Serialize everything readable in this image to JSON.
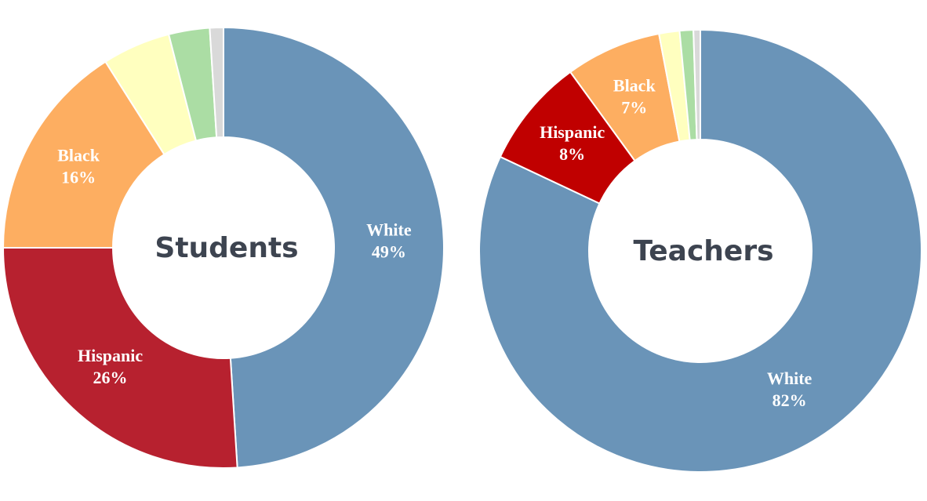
{
  "chart_data": [
    {
      "type": "donut",
      "title": "Students",
      "categories": [
        "White",
        "Hispanic",
        "Black",
        null,
        null,
        null
      ],
      "values": [
        49,
        26,
        16,
        5,
        3,
        1
      ],
      "value_labels": [
        "49%",
        "26%",
        "16%",
        null,
        null,
        null
      ],
      "colors": [
        "#6a94b8",
        "#b7212f",
        "#fdae61",
        "#ffffbf",
        "#abdda4",
        "#d9d9d9"
      ]
    },
    {
      "type": "donut",
      "title": "Teachers",
      "categories": [
        "White",
        "Hispanic",
        "Black",
        null,
        null,
        null
      ],
      "values": [
        82,
        8,
        7,
        1.5,
        1,
        0.5
      ],
      "value_labels": [
        "82%",
        "8%",
        "7%",
        null,
        null,
        null
      ],
      "colors": [
        "#6a94b8",
        "#c00000",
        "#fdae61",
        "#ffffbf",
        "#abdda4",
        "#d9d9d9"
      ]
    }
  ]
}
